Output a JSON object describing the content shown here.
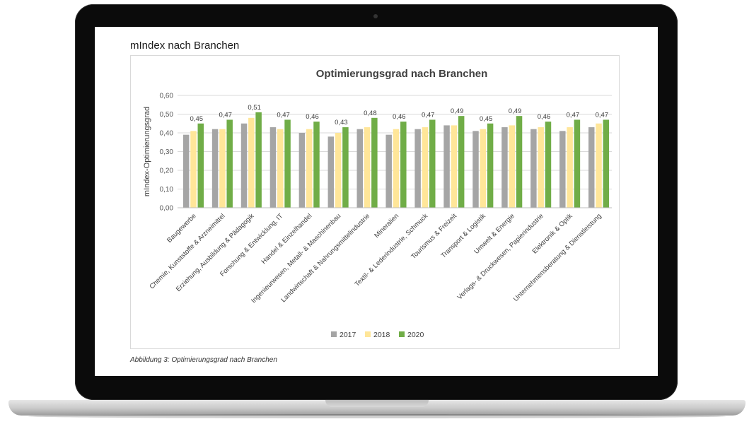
{
  "page": {
    "heading": "mIndex nach Branchen",
    "caption": "Abbildung 3: Optimierungsgrad nach Branchen"
  },
  "chart_data": {
    "type": "bar",
    "title": "Optimierungsgrad nach Branchen",
    "ylabel": "mIndex-Optimierungsgrad",
    "xlabel": "",
    "ylim": [
      0,
      0.6
    ],
    "yticks": [
      "0,00",
      "0,10",
      "0,20",
      "0,30",
      "0,40",
      "0,50",
      "0,60"
    ],
    "grid": true,
    "legend_position": "bottom",
    "categories": [
      "Baugewerbe",
      "Chemie, Kunststoffe & Arzneimittel",
      "Erziehung, Ausbildung & Pädagogik",
      "Forschung & Entwicklung, IT",
      "Handel & Einzelhandel",
      "Ingenieurwesen, Metall- & Maschinenbau",
      "Landwirtschaft & Nahrungsmittelindustrie",
      "Mineralien",
      "Textil- & Lederindustrie, Schmuck",
      "Tourismus & Freizeit",
      "Transport & Logistik",
      "Umwelt & Energie",
      "Verlags- & Druckwesen, Papierindustrie",
      "Elektronik & Optik",
      "Unternehmensberatung & Dienstleistung"
    ],
    "series": [
      {
        "name": "2017",
        "color": "#a5a5a5",
        "values": [
          0.39,
          0.42,
          0.45,
          0.43,
          0.4,
          0.38,
          0.42,
          0.39,
          0.42,
          0.44,
          0.41,
          0.43,
          0.42,
          0.41,
          0.43
        ]
      },
      {
        "name": "2018",
        "color": "#ffe699",
        "values": [
          0.41,
          0.42,
          0.48,
          0.42,
          0.42,
          0.4,
          0.43,
          0.42,
          0.43,
          0.44,
          0.42,
          0.44,
          0.43,
          0.43,
          0.45
        ]
      },
      {
        "name": "2020",
        "color": "#70ad47",
        "values": [
          0.45,
          0.47,
          0.51,
          0.47,
          0.46,
          0.43,
          0.48,
          0.46,
          0.47,
          0.49,
          0.45,
          0.49,
          0.46,
          0.47,
          0.47
        ]
      }
    ],
    "data_labels": [
      "0,45",
      "0,47",
      "0,51",
      "0,47",
      "0,46",
      "0,43",
      "0,48",
      "0,46",
      "0,47",
      "0,49",
      "0,45",
      "0,49",
      "0,46",
      "0,47",
      "0,47"
    ]
  }
}
